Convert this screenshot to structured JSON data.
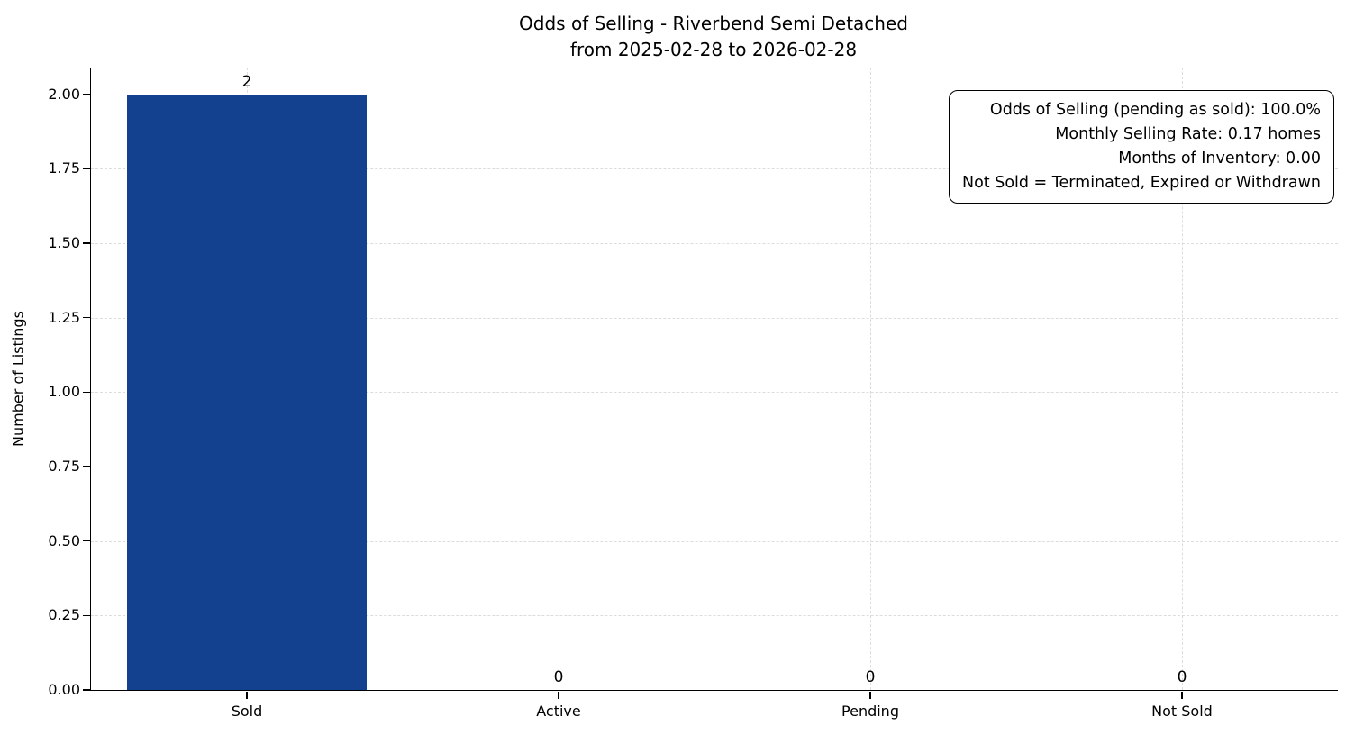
{
  "chart_data": {
    "type": "bar",
    "title_line1": "Odds of Selling - Riverbend Semi Detached",
    "title_line2": "from 2025-02-28 to 2026-02-28",
    "title": "Odds of Selling - Riverbend Semi Detached from 2025-02-28 to 2026-02-28",
    "xlabel": "",
    "ylabel": "Number of Listings",
    "categories": [
      "Sold",
      "Active",
      "Pending",
      "Not Sold"
    ],
    "values": [
      2,
      0,
      0,
      0
    ],
    "value_labels": [
      "2",
      "0",
      "0",
      "0"
    ],
    "ylim": [
      0,
      2.09
    ],
    "yticks": [
      0,
      0.25,
      0.5,
      0.75,
      1.0,
      1.25,
      1.5,
      1.75,
      2.0
    ],
    "ytick_labels": [
      "0.00",
      "0.25",
      "0.50",
      "0.75",
      "1.00",
      "1.25",
      "1.50",
      "1.75",
      "2.00"
    ],
    "grid": "dashed",
    "legend_position": "none",
    "bar_color": "#14418f",
    "bar_width_fraction": 0.77,
    "annotation_lines": {
      "0": "Odds of Selling (pending as sold): 100.0%",
      "1": "Monthly Selling Rate: 0.17 homes",
      "2": "Months of Inventory: 0.00",
      "3": "Not Sold = Terminated, Expired or Withdrawn"
    }
  }
}
